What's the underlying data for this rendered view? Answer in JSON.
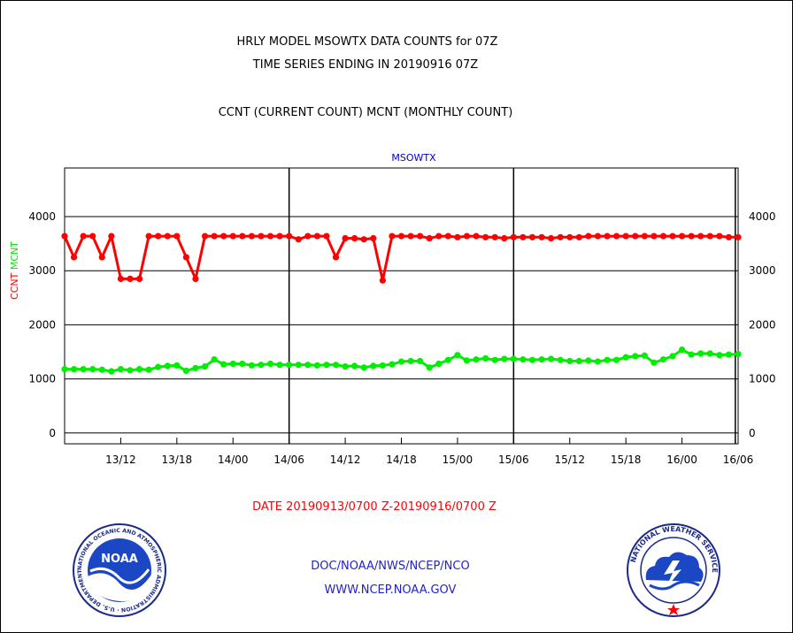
{
  "header": {
    "title_line1": "HRLY MODEL MSOWTX DATA COUNTS for 07Z",
    "title_line2": "TIME SERIES ENDING IN 20190916 07Z",
    "subtitle": "CCNT (CURRENT COUNT) MCNT (MONTHLY COUNT)"
  },
  "footer": {
    "date_range": "DATE 20190913/0700 Z-20190916/0700 Z",
    "org": "DOC/NOAA/NWS/NCEP/NCO",
    "url": "WWW.NCEP.NOAA.GOV"
  },
  "logos": {
    "left": {
      "label": "NOAA",
      "ring_text": "NATIONAL OCEANIC AND ATMOSPHERIC ADMINISTRATION · U.S. DEPARTMENT OF COMMERCE"
    },
    "right": {
      "ring_text": "NATIONAL WEATHER SERVICE"
    }
  },
  "colors": {
    "ccnt": "#ff0000",
    "mcnt": "#00ee00",
    "plot_title": "#0000cc",
    "footer_text": "#2222cc",
    "date_text": "#ff0000"
  },
  "chart_data": {
    "type": "line",
    "title": "MSOWTX",
    "ylabel_parts": [
      {
        "text": "CCNT",
        "color": "#ff0000"
      },
      {
        "text": "MCNT",
        "color": "#00ee00"
      }
    ],
    "ylim": [
      -200,
      4900
    ],
    "yticks": [
      0,
      1000,
      2000,
      3000,
      4000
    ],
    "xlim": [
      0,
      72
    ],
    "xticks": [
      {
        "x": 6,
        "label": "13/12"
      },
      {
        "x": 12,
        "label": "13/18"
      },
      {
        "x": 18,
        "label": "14/00"
      },
      {
        "x": 24,
        "label": "14/06"
      },
      {
        "x": 30,
        "label": "14/12"
      },
      {
        "x": 36,
        "label": "14/18"
      },
      {
        "x": 42,
        "label": "15/00"
      },
      {
        "x": 48,
        "label": "15/06"
      },
      {
        "x": 54,
        "label": "15/12"
      },
      {
        "x": 60,
        "label": "15/18"
      },
      {
        "x": 66,
        "label": "16/00"
      },
      {
        "x": 72,
        "label": "16/06"
      }
    ],
    "day_lines": [
      24,
      48,
      71.7
    ],
    "grid": "horizontal",
    "x_hours": [
      0,
      1,
      2,
      3,
      4,
      5,
      6,
      7,
      8,
      9,
      10,
      11,
      12,
      13,
      14,
      15,
      16,
      17,
      18,
      19,
      20,
      21,
      22,
      23,
      24,
      25,
      26,
      27,
      28,
      29,
      30,
      31,
      32,
      33,
      34,
      35,
      36,
      37,
      38,
      39,
      40,
      41,
      42,
      43,
      44,
      45,
      46,
      47,
      48,
      49,
      50,
      51,
      52,
      53,
      54,
      55,
      56,
      57,
      58,
      59,
      60,
      61,
      62,
      63,
      64,
      65,
      66,
      67,
      68,
      69,
      70,
      71,
      72
    ],
    "series": [
      {
        "name": "CCNT",
        "color": "#ff0000",
        "values": [
          3640,
          3250,
          3640,
          3640,
          3250,
          3640,
          2850,
          2850,
          2850,
          3640,
          3640,
          3640,
          3640,
          3250,
          2850,
          3640,
          3640,
          3640,
          3640,
          3640,
          3640,
          3640,
          3640,
          3640,
          3640,
          3580,
          3640,
          3640,
          3640,
          3250,
          3600,
          3600,
          3580,
          3600,
          2820,
          3640,
          3640,
          3640,
          3640,
          3600,
          3640,
          3640,
          3620,
          3640,
          3640,
          3620,
          3620,
          3600,
          3620,
          3620,
          3620,
          3620,
          3600,
          3620,
          3620,
          3620,
          3640,
          3640,
          3640,
          3640,
          3640,
          3640,
          3640,
          3640,
          3640,
          3640,
          3640,
          3640,
          3640,
          3640,
          3640,
          3620,
          3620
        ]
      },
      {
        "name": "MCNT",
        "color": "#00ee00",
        "values": [
          1180,
          1180,
          1180,
          1180,
          1170,
          1140,
          1180,
          1160,
          1180,
          1170,
          1220,
          1240,
          1250,
          1150,
          1200,
          1230,
          1360,
          1270,
          1280,
          1280,
          1250,
          1260,
          1280,
          1260,
          1260,
          1260,
          1260,
          1250,
          1260,
          1260,
          1230,
          1240,
          1210,
          1240,
          1250,
          1270,
          1320,
          1330,
          1330,
          1210,
          1280,
          1350,
          1440,
          1340,
          1360,
          1380,
          1350,
          1370,
          1370,
          1360,
          1350,
          1360,
          1370,
          1350,
          1330,
          1330,
          1340,
          1320,
          1350,
          1350,
          1400,
          1420,
          1430,
          1300,
          1360,
          1420,
          1540,
          1450,
          1470,
          1470,
          1440,
          1450,
          1460
        ]
      }
    ]
  }
}
